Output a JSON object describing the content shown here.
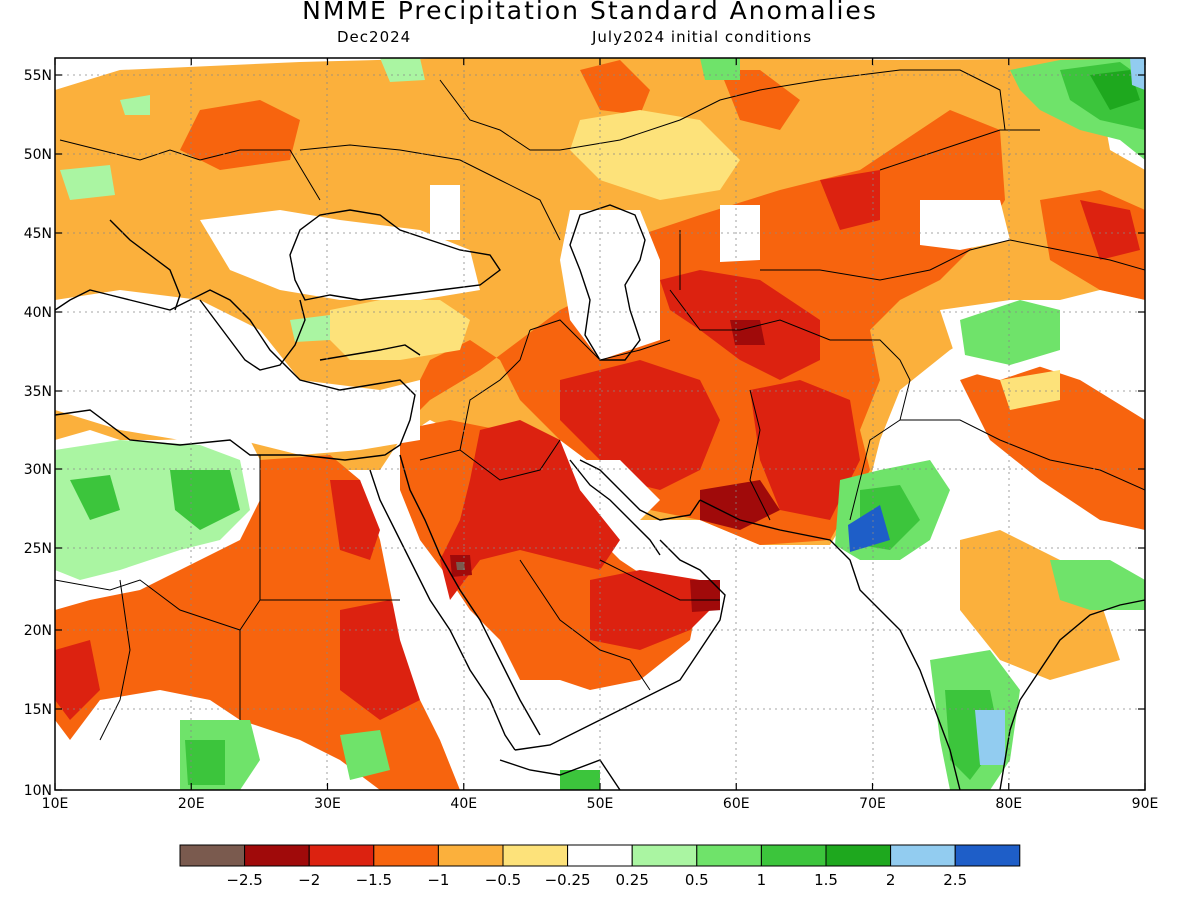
{
  "title": "NMME Precipitation Standard Anomalies",
  "valid_month": "Dec2024",
  "initial_conditions": "July2024 initial conditions",
  "map": {
    "lon_range": [
      10,
      90
    ],
    "lat_range": [
      10,
      56.5
    ],
    "lon_ticks": [
      "10E",
      "20E",
      "30E",
      "40E",
      "50E",
      "60E",
      "70E",
      "80E",
      "90E"
    ],
    "lat_ticks": [
      "55N",
      "50N",
      "45N",
      "40N",
      "35N",
      "30N",
      "25N",
      "20N",
      "15N",
      "10N"
    ],
    "gridlines": "dotted"
  },
  "colorbar": {
    "colors": [
      "#7a5a4e",
      "#a00a0a",
      "#dc2210",
      "#f7640e",
      "#fbb03c",
      "#fde27a",
      "#ffffff",
      "#aaf5a2",
      "#6fe36a",
      "#3cc53c",
      "#1ea81e",
      "#92ccf0",
      "#1e5ec8"
    ],
    "labels": [
      "−2.5",
      "−2",
      "−1.5",
      "−1",
      "−0.5",
      "−0.25",
      "0.25",
      "0.5",
      "1",
      "1.5",
      "2",
      "2.5"
    ]
  }
}
